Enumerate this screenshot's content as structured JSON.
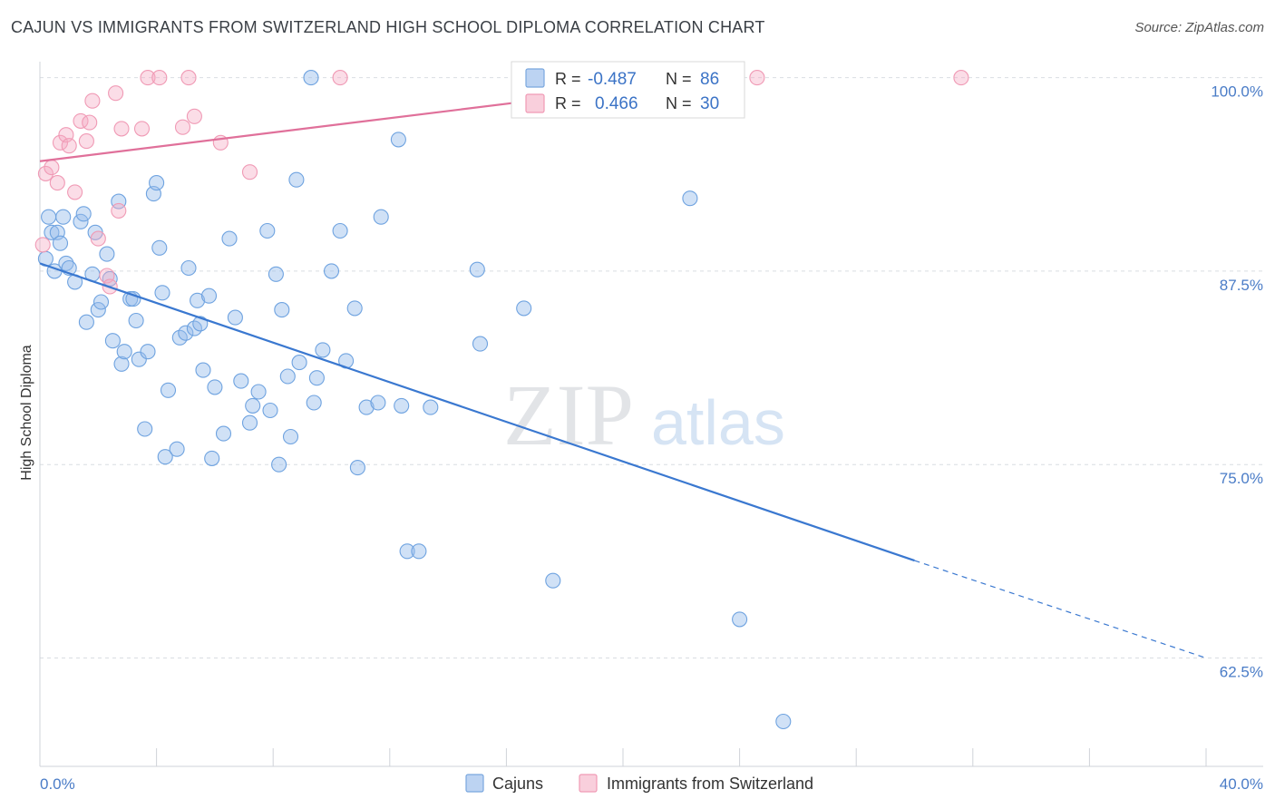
{
  "title": "CAJUN VS IMMIGRANTS FROM SWITZERLAND HIGH SCHOOL DIPLOMA CORRELATION CHART",
  "source": "Source: ZipAtlas.com",
  "watermark": {
    "zip": "ZIP",
    "atlas": "atlas"
  },
  "legend_top": {
    "rows": [
      {
        "r_label": "R =",
        "r_value": "-0.487",
        "n_label": "N =",
        "n_value": "86",
        "color": "#8ab4e8"
      },
      {
        "r_label": "R =",
        "r_value": "0.466",
        "n_label": "N =",
        "n_value": "30",
        "color": "#f4a6bd"
      }
    ]
  },
  "legend_bottom": {
    "items": [
      {
        "label": "Cajuns",
        "color": "#8ab4e8"
      },
      {
        "label": "Immigrants from Switzerland",
        "color": "#f4a6bd"
      }
    ]
  },
  "chart_data": {
    "type": "scatter",
    "xlabel": "",
    "ylabel": "High School Diploma",
    "xlim": [
      0,
      40
    ],
    "ylim": [
      55.5,
      101.5
    ],
    "x_tick_labels": [
      "0.0%",
      "40.0%"
    ],
    "y_ticks": [
      100,
      87.5,
      75,
      62.5
    ],
    "y_tick_labels": [
      "100.0%",
      "87.5%",
      "75.0%",
      "62.5%"
    ],
    "grid": true,
    "series": [
      {
        "name": "Cajuns",
        "color": "#6fa3e0",
        "trend": {
          "x0": 0,
          "y0": 88.0,
          "x1": 30,
          "y1": 68.8,
          "dashed_to_x": 40,
          "dashed_to_y": 62.5
        },
        "points": [
          [
            0.2,
            88.3
          ],
          [
            0.3,
            91.0
          ],
          [
            0.4,
            90.0
          ],
          [
            0.5,
            87.5
          ],
          [
            0.6,
            90.0
          ],
          [
            0.7,
            89.3
          ],
          [
            0.8,
            91.0
          ],
          [
            0.9,
            88.0
          ],
          [
            1.0,
            87.7
          ],
          [
            1.2,
            86.8
          ],
          [
            1.4,
            90.7
          ],
          [
            1.5,
            91.2
          ],
          [
            1.6,
            84.2
          ],
          [
            1.8,
            87.3
          ],
          [
            1.9,
            90.0
          ],
          [
            2.0,
            85.0
          ],
          [
            2.1,
            85.5
          ],
          [
            2.3,
            88.6
          ],
          [
            2.4,
            87.0
          ],
          [
            2.5,
            83.0
          ],
          [
            2.7,
            92.0
          ],
          [
            2.8,
            81.5
          ],
          [
            2.9,
            82.3
          ],
          [
            3.1,
            85.7
          ],
          [
            3.2,
            85.7
          ],
          [
            3.3,
            84.3
          ],
          [
            3.4,
            81.8
          ],
          [
            3.6,
            77.3
          ],
          [
            3.7,
            82.3
          ],
          [
            3.9,
            92.5
          ],
          [
            4.0,
            93.2
          ],
          [
            4.1,
            89.0
          ],
          [
            4.2,
            86.1
          ],
          [
            4.3,
            75.5
          ],
          [
            4.4,
            79.8
          ],
          [
            4.7,
            76.0
          ],
          [
            4.8,
            83.2
          ],
          [
            5.0,
            83.5
          ],
          [
            5.1,
            87.7
          ],
          [
            5.3,
            83.8
          ],
          [
            5.4,
            85.6
          ],
          [
            5.5,
            84.1
          ],
          [
            5.6,
            81.1
          ],
          [
            5.8,
            85.9
          ],
          [
            5.9,
            75.4
          ],
          [
            6.0,
            80.0
          ],
          [
            6.3,
            77.0
          ],
          [
            6.5,
            89.6
          ],
          [
            6.7,
            84.5
          ],
          [
            6.9,
            80.4
          ],
          [
            7.2,
            77.7
          ],
          [
            7.3,
            78.8
          ],
          [
            7.5,
            79.7
          ],
          [
            7.8,
            90.1
          ],
          [
            7.9,
            78.5
          ],
          [
            8.1,
            87.3
          ],
          [
            8.2,
            75.0
          ],
          [
            8.3,
            85.0
          ],
          [
            8.5,
            80.7
          ],
          [
            8.6,
            76.8
          ],
          [
            8.8,
            93.4
          ],
          [
            8.9,
            81.6
          ],
          [
            9.3,
            100.0
          ],
          [
            9.4,
            79.0
          ],
          [
            9.5,
            80.6
          ],
          [
            9.7,
            82.4
          ],
          [
            10.0,
            87.5
          ],
          [
            10.3,
            90.1
          ],
          [
            10.5,
            81.7
          ],
          [
            10.8,
            85.1
          ],
          [
            10.9,
            74.8
          ],
          [
            11.2,
            78.7
          ],
          [
            11.6,
            79.0
          ],
          [
            11.7,
            91.0
          ],
          [
            12.3,
            96.0
          ],
          [
            12.4,
            78.8
          ],
          [
            12.6,
            69.4
          ],
          [
            13.0,
            69.4
          ],
          [
            13.4,
            78.7
          ],
          [
            15.0,
            87.6
          ],
          [
            15.1,
            82.8
          ],
          [
            16.6,
            85.1
          ],
          [
            17.6,
            67.5
          ],
          [
            22.3,
            92.2
          ],
          [
            24.0,
            65.0
          ],
          [
            25.5,
            58.4
          ]
        ]
      },
      {
        "name": "Immigrants from Switzerland",
        "color": "#f09ab5",
        "trend": {
          "x0": 0,
          "y0": 94.6,
          "x1": 23.3,
          "y1": 100.0
        },
        "points": [
          [
            0.1,
            89.2
          ],
          [
            0.2,
            93.8
          ],
          [
            0.4,
            94.2
          ],
          [
            0.6,
            93.2
          ],
          [
            0.7,
            95.8
          ],
          [
            0.9,
            96.3
          ],
          [
            1.0,
            95.6
          ],
          [
            1.2,
            92.6
          ],
          [
            1.4,
            97.2
          ],
          [
            1.6,
            95.9
          ],
          [
            1.7,
            97.1
          ],
          [
            1.8,
            98.5
          ],
          [
            2.0,
            89.6
          ],
          [
            2.3,
            87.2
          ],
          [
            2.4,
            86.5
          ],
          [
            2.6,
            99.0
          ],
          [
            2.7,
            91.4
          ],
          [
            2.8,
            96.7
          ],
          [
            3.5,
            96.7
          ],
          [
            3.7,
            100.0
          ],
          [
            4.1,
            100.0
          ],
          [
            4.9,
            96.8
          ],
          [
            5.1,
            100.0
          ],
          [
            5.3,
            97.5
          ],
          [
            6.2,
            95.8
          ],
          [
            7.2,
            93.9
          ],
          [
            10.3,
            100.0
          ],
          [
            17.4,
            100.0
          ],
          [
            24.6,
            100.0
          ],
          [
            31.6,
            100.0
          ]
        ]
      }
    ]
  }
}
